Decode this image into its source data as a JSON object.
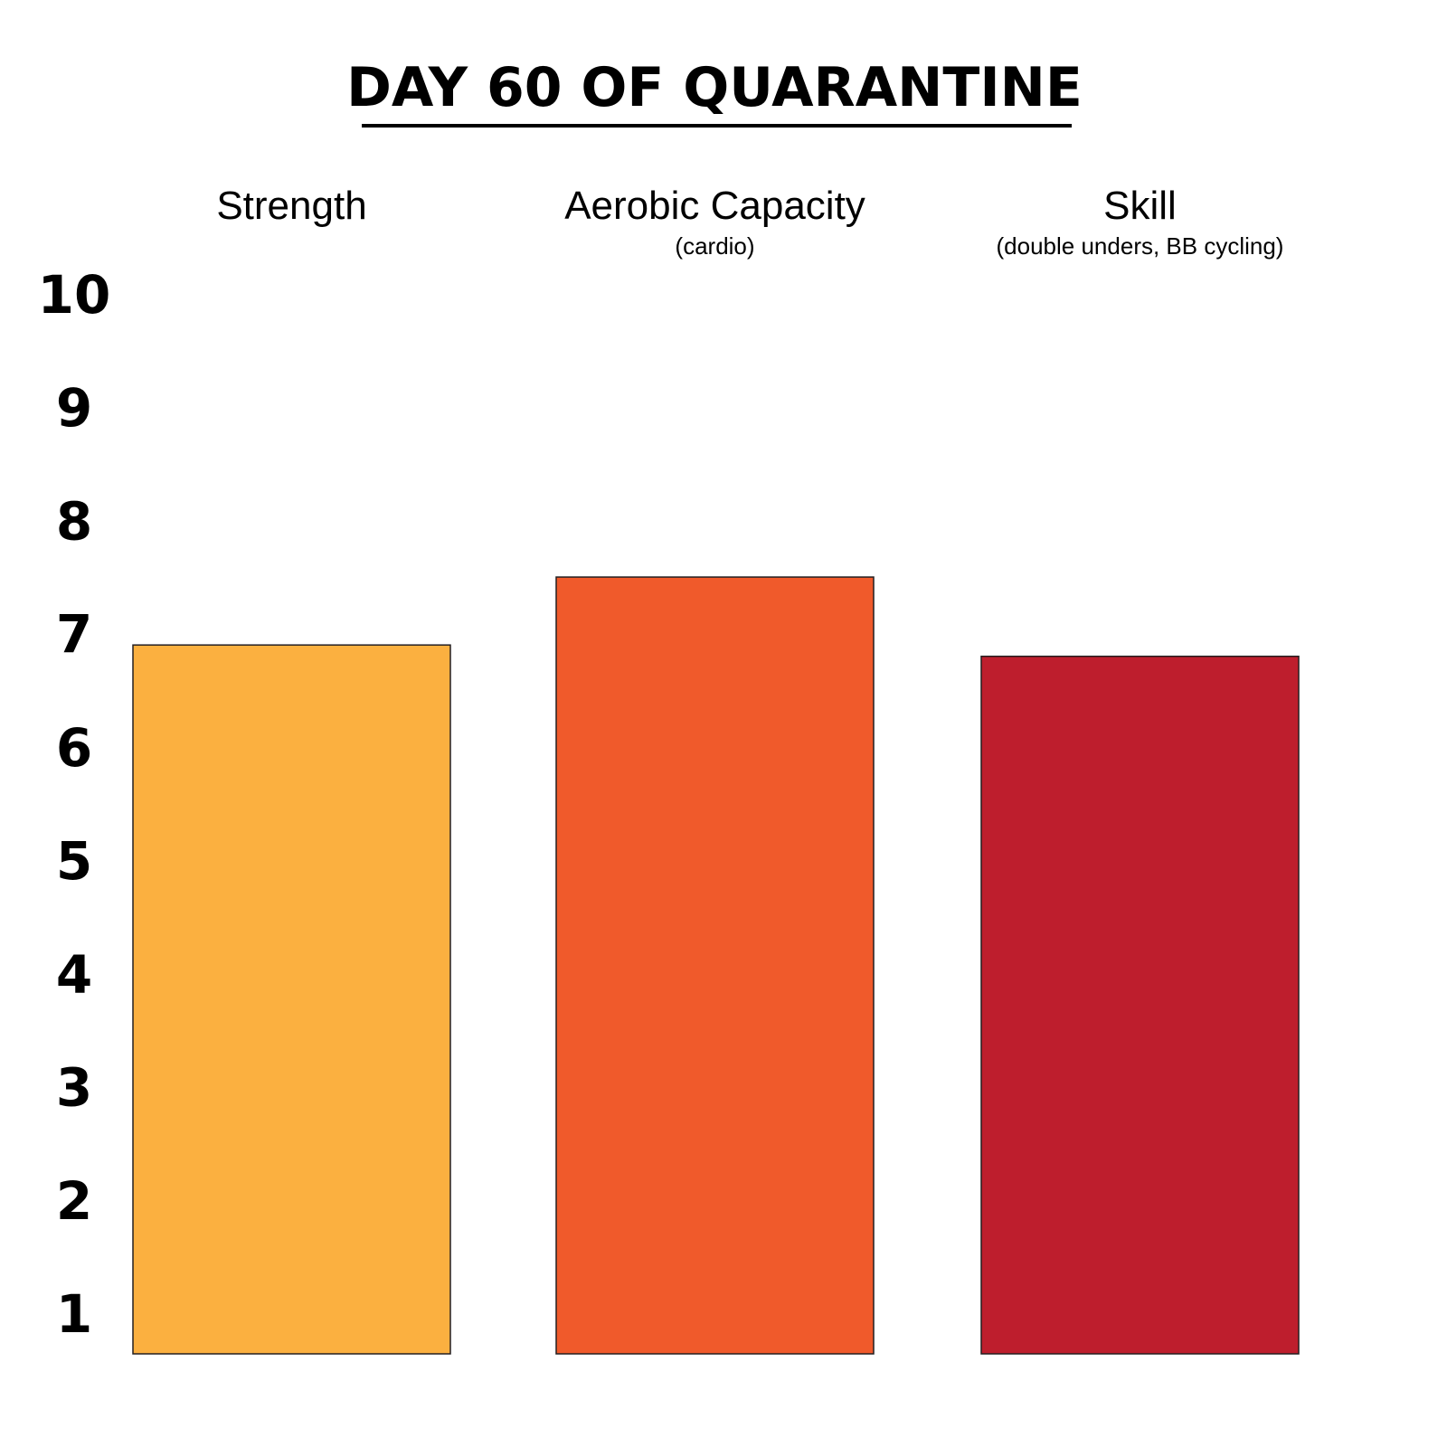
{
  "chart_data": {
    "type": "bar",
    "title": "DAY 60 OF QUARANTINE",
    "categories": [
      "Strength",
      "Aerobic Capacity",
      "Skill"
    ],
    "category_sublabels": [
      "",
      "(cardio)",
      "(double unders, BB cycling)"
    ],
    "values": [
      6.9,
      7.5,
      6.8
    ],
    "colors": [
      "#FBB040",
      "#F05A2B",
      "#BE1E2D"
    ],
    "y_ticks": [
      "1",
      "2",
      "3",
      "4",
      "5",
      "6",
      "7",
      "8",
      "9",
      "10"
    ],
    "ylim": [
      1,
      10
    ],
    "grid": false,
    "xlabel": "",
    "ylabel": ""
  }
}
